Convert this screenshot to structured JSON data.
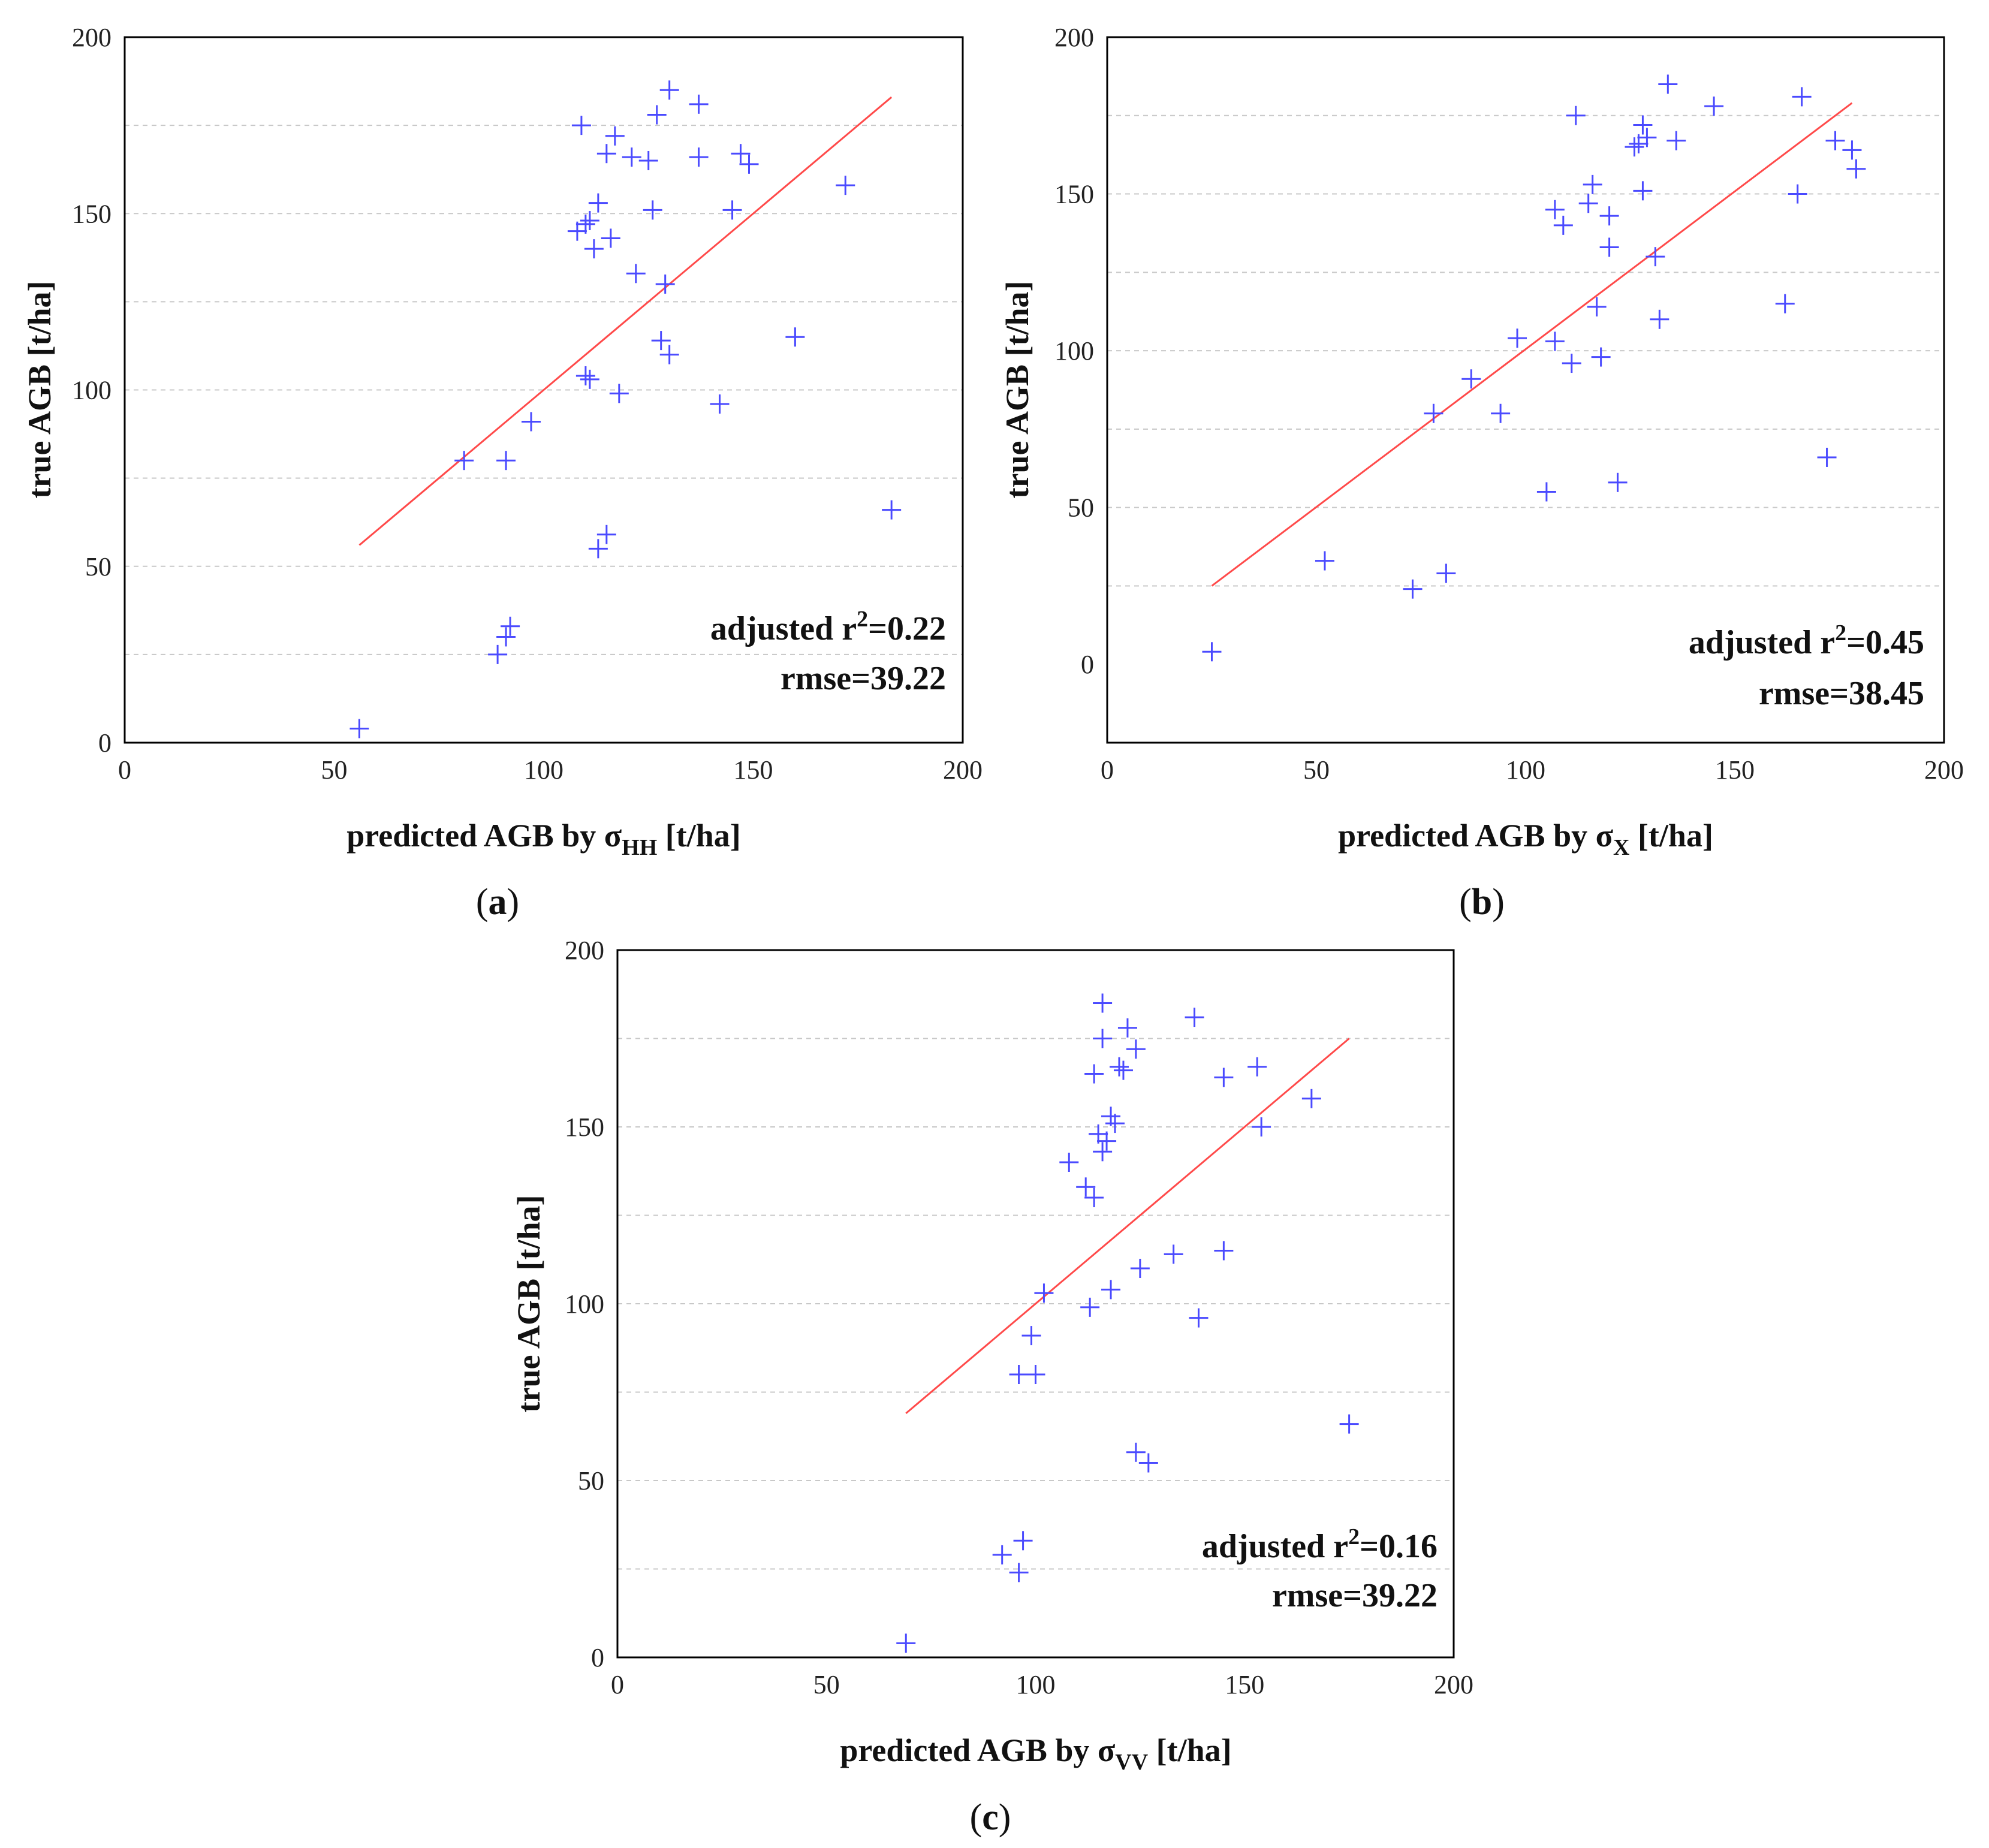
{
  "chart_data": [
    {
      "type": "scatter",
      "panel_label": "a",
      "xlabel_prefix": "predicted AGB by σ",
      "xlabel_sub": "HH",
      "xlabel_suffix": " [t/ha]",
      "ylabel": "true AGB [t/ha]",
      "xlim": [
        0,
        200
      ],
      "ylim": [
        0,
        200
      ],
      "xticks": [
        0,
        50,
        100,
        150,
        200
      ],
      "yticks": [
        0,
        50,
        100,
        150,
        200
      ],
      "gridlines_y": [
        25,
        50,
        75,
        100,
        125,
        150,
        175
      ],
      "annotation": {
        "r2_prefix": "adjusted r",
        "r2_sup": "2",
        "r2_value": "=0.22",
        "rmse": "rmse=39.22"
      },
      "fit_line": [
        [
          56,
          56
        ],
        [
          183,
          183
        ]
      ],
      "points": [
        [
          56,
          4
        ],
        [
          81,
          80
        ],
        [
          91,
          80
        ],
        [
          89,
          25
        ],
        [
          91,
          30
        ],
        [
          92,
          33
        ],
        [
          97,
          91
        ],
        [
          109,
          175
        ],
        [
          108,
          145
        ],
        [
          110,
          147
        ],
        [
          111,
          148
        ],
        [
          112,
          140
        ],
        [
          113,
          153
        ],
        [
          115,
          167
        ],
        [
          116,
          143
        ],
        [
          117,
          172
        ],
        [
          110,
          104
        ],
        [
          111,
          103
        ],
        [
          118,
          99
        ],
        [
          121,
          166
        ],
        [
          122,
          133
        ],
        [
          125,
          165
        ],
        [
          126,
          151
        ],
        [
          127,
          178
        ],
        [
          130,
          185
        ],
        [
          129,
          130
        ],
        [
          128,
          114
        ],
        [
          130,
          110
        ],
        [
          113,
          55
        ],
        [
          115,
          59
        ],
        [
          137,
          181
        ],
        [
          137,
          166
        ],
        [
          142,
          96
        ],
        [
          145,
          151
        ],
        [
          147,
          167
        ],
        [
          149,
          164
        ],
        [
          160,
          115
        ],
        [
          172,
          158
        ],
        [
          183,
          66
        ]
      ]
    },
    {
      "type": "scatter",
      "panel_label": "b",
      "xlabel_prefix": "predicted AGB by σ",
      "xlabel_sub": "X",
      "xlabel_suffix": " [t/ha]",
      "ylabel": "true AGB [t/ha]",
      "xlim": [
        0,
        200
      ],
      "ylim": [
        -25,
        200
      ],
      "xticks": [
        0,
        50,
        100,
        150,
        200
      ],
      "yticks": [
        0,
        50,
        100,
        150,
        200
      ],
      "gridlines_y": [
        25,
        50,
        75,
        100,
        125,
        150,
        175
      ],
      "annotation": {
        "r2_prefix": "adjusted r",
        "r2_sup": "2",
        "r2_value": "=0.45",
        "rmse": "rmse=38.45"
      },
      "fit_line": [
        [
          25,
          25
        ],
        [
          178,
          179
        ]
      ],
      "points": [
        [
          25,
          4
        ],
        [
          52,
          33
        ],
        [
          73,
          24
        ],
        [
          81,
          29
        ],
        [
          78,
          80
        ],
        [
          87,
          91
        ],
        [
          94,
          80
        ],
        [
          98,
          104
        ],
        [
          105,
          55
        ],
        [
          107,
          103
        ],
        [
          107,
          145
        ],
        [
          109,
          140
        ],
        [
          111,
          96
        ],
        [
          112,
          175
        ],
        [
          115,
          147
        ],
        [
          116,
          153
        ],
        [
          117,
          114
        ],
        [
          118,
          98
        ],
        [
          120,
          143
        ],
        [
          120,
          133
        ],
        [
          122,
          58
        ],
        [
          126,
          165
        ],
        [
          127,
          166
        ],
        [
          128,
          151
        ],
        [
          128,
          172
        ],
        [
          129,
          168
        ],
        [
          131,
          130
        ],
        [
          132,
          110
        ],
        [
          134,
          185
        ],
        [
          136,
          167
        ],
        [
          145,
          178
        ],
        [
          162,
          115
        ],
        [
          165,
          150
        ],
        [
          166,
          181
        ],
        [
          172,
          66
        ],
        [
          174,
          167
        ],
        [
          178,
          164
        ],
        [
          179,
          158
        ]
      ]
    },
    {
      "type": "scatter",
      "panel_label": "c",
      "xlabel_prefix": "predicted AGB by σ",
      "xlabel_sub": "VV",
      "xlabel_suffix": " [t/ha]",
      "ylabel": "true AGB [t/ha]",
      "xlim": [
        0,
        200
      ],
      "ylim": [
        0,
        200
      ],
      "xticks": [
        0,
        50,
        100,
        150,
        200
      ],
      "yticks": [
        0,
        50,
        100,
        150,
        200
      ],
      "gridlines_y": [
        25,
        50,
        75,
        100,
        125,
        150,
        175
      ],
      "annotation": {
        "r2_prefix": "adjusted r",
        "r2_sup": "2",
        "r2_value": "=0.16",
        "rmse": "rmse=39.22"
      },
      "fit_line": [
        [
          69,
          69
        ],
        [
          175,
          175
        ]
      ],
      "points": [
        [
          69,
          4
        ],
        [
          92,
          29
        ],
        [
          96,
          24
        ],
        [
          97,
          33
        ],
        [
          96,
          80
        ],
        [
          100,
          80
        ],
        [
          99,
          91
        ],
        [
          102,
          103
        ],
        [
          108,
          140
        ],
        [
          112,
          133
        ],
        [
          113,
          99
        ],
        [
          114,
          130
        ],
        [
          114,
          165
        ],
        [
          115,
          148
        ],
        [
          116,
          185
        ],
        [
          116,
          175
        ],
        [
          116,
          143
        ],
        [
          117,
          146
        ],
        [
          118,
          153
        ],
        [
          118,
          104
        ],
        [
          119,
          151
        ],
        [
          120,
          167
        ],
        [
          121,
          166
        ],
        [
          122,
          178
        ],
        [
          124,
          172
        ],
        [
          124,
          58
        ],
        [
          125,
          110
        ],
        [
          127,
          55
        ],
        [
          133,
          114
        ],
        [
          138,
          181
        ],
        [
          139,
          96
        ],
        [
          145,
          115
        ],
        [
          145,
          164
        ],
        [
          153,
          167
        ],
        [
          154,
          150
        ],
        [
          166,
          158
        ],
        [
          175,
          66
        ]
      ]
    }
  ]
}
